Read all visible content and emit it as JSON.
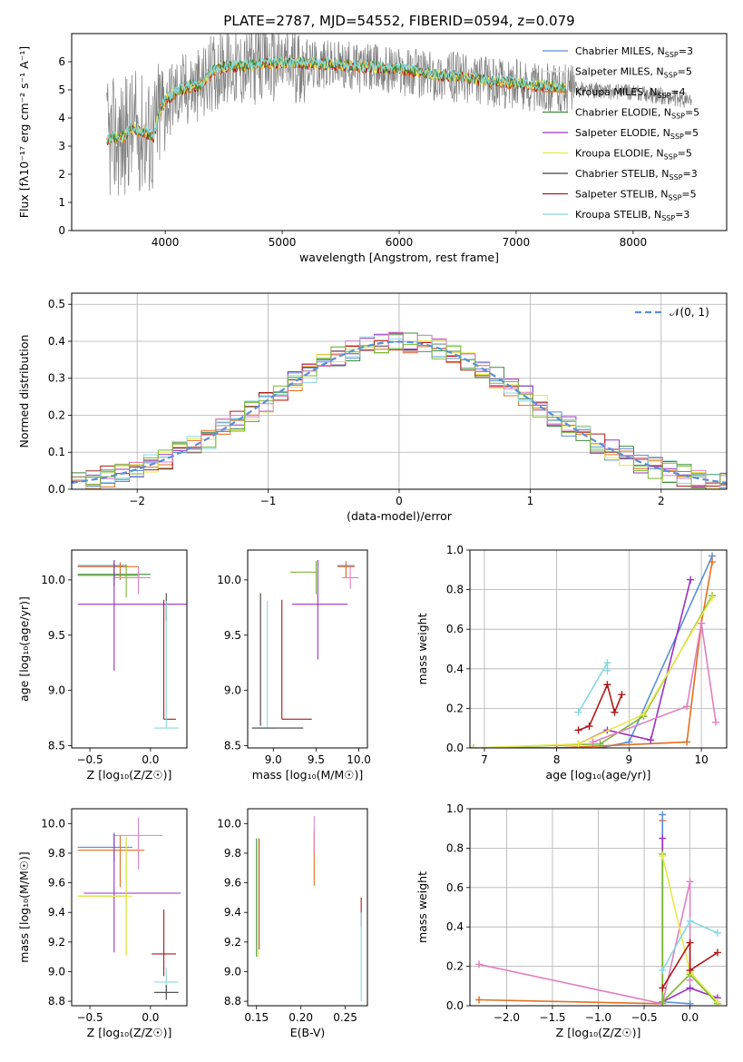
{
  "figure": {
    "title": "PLATE=2787, MJD=54552, FIBERID=0594, z=0.079"
  },
  "colors": {
    "chabrier_miles": "#5b8fd6",
    "salpeter_miles": "#e0e0e0",
    "kroupa_miles": "#e07020",
    "chabrier_elodie": "#3c8a3c",
    "salpeter_elodie": "#9b30c0",
    "kroupa_elodie": "#e8e84a",
    "chabrier_stelib": "#404040",
    "salpeter_stelib": "#b01818",
    "kroupa_stelib": "#88d8e0",
    "data": "#808080",
    "pink": "#e080c0",
    "green": "#7ab830"
  },
  "chart_data": [
    {
      "id": "spectrum",
      "type": "line",
      "title": "PLATE=2787, MJD=54552, FIBERID=0594, z=0.079",
      "xlabel": "wavelength [Angstrom, rest frame]",
      "ylabel": "Flux [fλ10⁻¹⁷ erg cm⁻² s⁻¹ A⁻¹]",
      "xlim": [
        3200,
        8800
      ],
      "ylim": [
        0,
        7
      ],
      "xticks": [
        4000,
        5000,
        6000,
        7000,
        8000
      ],
      "yticks": [
        0,
        1,
        2,
        3,
        4,
        5,
        6
      ],
      "grid": false,
      "legend_position": "right",
      "legend": [
        {
          "label": "Chabrier MILES, N",
          "sub": "SSP",
          "suffix": "=3",
          "color_key": "chabrier_miles"
        },
        {
          "label": "Salpeter MILES, N",
          "sub": "SSP",
          "suffix": "=5",
          "color_key": "salpeter_miles"
        },
        {
          "label": "Kroupa MILES, N",
          "sub": "SSP",
          "suffix": "=4",
          "color_key": "kroupa_miles"
        },
        {
          "label": "Chabrier ELODIE, N",
          "sub": "SSP",
          "suffix": "=5",
          "color_key": "chabrier_elodie"
        },
        {
          "label": "Salpeter ELODIE, N",
          "sub": "SSP",
          "suffix": "=5",
          "color_key": "salpeter_elodie"
        },
        {
          "label": "Kroupa ELODIE, N",
          "sub": "SSP",
          "suffix": "=5",
          "color_key": "kroupa_elodie"
        },
        {
          "label": "Chabrier STELIB, N",
          "sub": "SSP",
          "suffix": "=3",
          "color_key": "chabrier_stelib"
        },
        {
          "label": "Salpeter STELIB, N",
          "sub": "SSP",
          "suffix": "=5",
          "color_key": "salpeter_stelib"
        },
        {
          "label": "Kroupa STELIB, N",
          "sub": "SSP",
          "suffix": "=3",
          "color_key": "kroupa_stelib"
        }
      ],
      "continuum": {
        "x": [
          3500,
          3650,
          3700,
          3800,
          3900,
          3950,
          4000,
          4100,
          4200,
          4300,
          4400,
          4500,
          4700,
          4800,
          5000,
          5200,
          5500,
          5800,
          6000,
          6300,
          6500,
          6700,
          7000,
          7200,
          7400,
          8000,
          8300,
          8500
        ],
        "y": [
          3.2,
          3.3,
          3.6,
          3.5,
          3.3,
          4.2,
          4.6,
          4.9,
          5.1,
          5.1,
          5.6,
          5.8,
          5.8,
          5.9,
          5.95,
          5.9,
          5.85,
          5.75,
          5.7,
          5.5,
          5.45,
          5.3,
          5.2,
          5.1,
          5.05,
          4.9,
          4.75,
          4.6
        ]
      }
    },
    {
      "id": "residuals",
      "type": "line",
      "xlabel": "(data-model)/error",
      "ylabel": "Normed distribution",
      "xlim": [
        -2.5,
        2.5
      ],
      "ylim": [
        0,
        0.53
      ],
      "xticks": [
        -2,
        -1,
        0,
        1,
        2
      ],
      "yticks": [
        0.0,
        0.1,
        0.2,
        0.3,
        0.4,
        0.5
      ],
      "grid": true,
      "legend_position": "top-right",
      "legend": [
        {
          "label": "𝒩(0, 1)",
          "color_key": "chabrier_miles"
        }
      ],
      "gaussian": {
        "mean": 0,
        "sigma": 1
      }
    },
    {
      "id": "age_vs_z",
      "type": "scatter",
      "xlabel": "Z [log₁₀(Z/Z☉)]",
      "ylabel": "age  [log₁₀(age/yr)]",
      "xlim": [
        -0.65,
        0.3
      ],
      "ylim": [
        8.48,
        10.27
      ],
      "xticks": [
        -0.5,
        0.0
      ],
      "yticks": [
        8.5,
        9.0,
        9.5,
        10.0
      ],
      "grid": false,
      "errorbars": [
        {
          "color_key": "chabrier_miles",
          "x": -0.3,
          "xerr": [
            0.3,
            0.1
          ],
          "y": 10.13,
          "yerr": [
            0.13,
            0.04
          ]
        },
        {
          "color_key": "kroupa_miles",
          "x": -0.25,
          "xerr": [
            0.35,
            0.15
          ],
          "y": 10.12,
          "yerr": [
            0.12,
            0.04
          ]
        },
        {
          "color_key": "chabrier_elodie",
          "x": -0.3,
          "xerr": [
            0.3,
            0.3
          ],
          "y": 10.05,
          "yerr": [
            0.1,
            0.1
          ]
        },
        {
          "color_key": "green",
          "x": -0.2,
          "xerr": [
            0.4,
            0.1
          ],
          "y": 10.04,
          "yerr": [
            0.2,
            0.1
          ]
        },
        {
          "color_key": "salpeter_elodie",
          "x": -0.3,
          "xerr": [
            0.3,
            0.6
          ],
          "y": 9.78,
          "yerr": [
            0.6,
            0.4
          ]
        },
        {
          "color_key": "pink",
          "x": -0.1,
          "xerr": [
            0.2,
            0.1
          ],
          "y": 10.02,
          "yerr": [
            0.15,
            0.1
          ]
        },
        {
          "color_key": "chabrier_stelib",
          "x": 0.13,
          "xerr": [
            0.0,
            0.0
          ],
          "y": 9.88,
          "yerr": [
            0.25,
            0.0
          ]
        },
        {
          "color_key": "salpeter_stelib",
          "x": 0.11,
          "xerr": [
            0.0,
            0.1
          ],
          "y": 8.74,
          "yerr": [
            0.0,
            1.08
          ]
        },
        {
          "color_key": "kroupa_stelib",
          "x": 0.13,
          "xerr": [
            0.1,
            0.1
          ],
          "y": 8.66,
          "yerr": [
            0.0,
            1.15
          ]
        }
      ]
    },
    {
      "id": "age_vs_mass",
      "type": "scatter",
      "xlabel": "mass [log₁₀(M/M☉)]",
      "ylabel": "",
      "xlim": [
        8.7,
        10.1
      ],
      "ylim": [
        8.48,
        10.27
      ],
      "xticks": [
        9.0,
        9.5,
        10.0
      ],
      "yticks": [
        8.5,
        9.0,
        9.5,
        10.0
      ],
      "grid": false,
      "errorbars": [
        {
          "color_key": "chabrier_miles",
          "x": 9.85,
          "xerr": [
            0.1,
            0.1
          ],
          "y": 10.13,
          "yerr": [
            0.1,
            0.04
          ]
        },
        {
          "color_key": "kroupa_miles",
          "x": 9.85,
          "xerr": [
            0.1,
            0.1
          ],
          "y": 10.12,
          "yerr": [
            0.1,
            0.04
          ]
        },
        {
          "color_key": "green",
          "x": 9.5,
          "xerr": [
            0.3,
            0.0
          ],
          "y": 10.07,
          "yerr": [
            0.2,
            0.1
          ]
        },
        {
          "color_key": "salpeter_elodie",
          "x": 9.52,
          "xerr": [
            0.3,
            0.35
          ],
          "y": 9.78,
          "yerr": [
            0.5,
            0.4
          ]
        },
        {
          "color_key": "pink",
          "x": 9.9,
          "xerr": [
            0.1,
            0.1
          ],
          "y": 10.02,
          "yerr": [
            0.1,
            0.1
          ]
        },
        {
          "color_key": "chabrier_stelib",
          "x": 8.85,
          "xerr": [
            0.0,
            0.0
          ],
          "y": 9.88,
          "yerr": [
            1.2,
            0.0
          ]
        },
        {
          "color_key": "salpeter_stelib",
          "x": 9.1,
          "xerr": [
            0.0,
            0.35
          ],
          "y": 8.74,
          "yerr": [
            0.0,
            1.08
          ]
        },
        {
          "color_key": "kroupa_stelib",
          "x": 8.93,
          "xerr": [
            0.1,
            0.1
          ],
          "y": 8.66,
          "yerr": [
            0.0,
            1.15
          ]
        },
        {
          "color_key": "chabrier_stelib",
          "x": 9.05,
          "xerr": [
            0.3,
            0.3
          ],
          "y": 8.66,
          "yerr": [
            0.0,
            0.0
          ]
        }
      ]
    },
    {
      "id": "mass_weight_vs_age",
      "type": "line",
      "xlabel": "age  [log₁₀(age/yr)]",
      "ylabel": "mass weight",
      "xlim": [
        6.8,
        10.35
      ],
      "ylim": [
        0,
        1.0
      ],
      "xticks": [
        7,
        8,
        9,
        10
      ],
      "yticks": [
        0.0,
        0.2,
        0.4,
        0.6,
        0.8,
        1.0
      ],
      "grid": true,
      "series": [
        {
          "color_key": "chabrier_miles",
          "x": [
            6.85,
            8.6,
            9.0,
            10.15
          ],
          "y": [
            0.0,
            0.0,
            0.03,
            0.97
          ]
        },
        {
          "color_key": "kroupa_miles",
          "x": [
            6.85,
            8.0,
            9.8,
            10.0,
            10.15
          ],
          "y": [
            0.0,
            0.0,
            0.03,
            0.63,
            0.94
          ]
        },
        {
          "color_key": "salpeter_elodie",
          "x": [
            8.3,
            8.7,
            9.3,
            9.85
          ],
          "y": [
            0.02,
            0.09,
            0.04,
            0.85
          ]
        },
        {
          "color_key": "green",
          "x": [
            6.85,
            8.6,
            9.2,
            10.15
          ],
          "y": [
            0.0,
            0.02,
            0.16,
            0.77
          ]
        },
        {
          "color_key": "kroupa_elodie",
          "x": [
            6.85,
            8.3,
            9.2,
            10.15
          ],
          "y": [
            0.0,
            0.02,
            0.17,
            0.76
          ]
        },
        {
          "color_key": "pink",
          "x": [
            8.5,
            9.8,
            10.0,
            10.2
          ],
          "y": [
            0.03,
            0.21,
            0.63,
            0.13
          ]
        },
        {
          "color_key": "salpeter_stelib",
          "x": [
            8.3,
            8.45,
            8.7,
            8.8,
            8.9
          ],
          "y": [
            0.09,
            0.11,
            0.32,
            0.18,
            0.27
          ]
        },
        {
          "color_key": "kroupa_stelib",
          "x": [
            8.3,
            8.7,
            8.7
          ],
          "y": [
            0.18,
            0.43,
            0.39
          ]
        }
      ]
    },
    {
      "id": "mass_vs_z",
      "type": "scatter",
      "xlabel": "Z [log₁₀(Z/Z☉)]",
      "ylabel": "mass [log₁₀(M/M☉)]",
      "xlim": [
        -0.65,
        0.3
      ],
      "ylim": [
        8.77,
        10.1
      ],
      "xticks": [
        -0.5,
        0.0
      ],
      "yticks": [
        8.8,
        9.0,
        9.2,
        9.4,
        9.6,
        9.8,
        10.0
      ],
      "grid": false,
      "errorbars": [
        {
          "color_key": "chabrier_miles",
          "x": -0.3,
          "xerr": [
            0.3,
            0.15
          ],
          "y": 9.84,
          "yerr": [
            0.1,
            0.1
          ]
        },
        {
          "color_key": "kroupa_miles",
          "x": -0.25,
          "xerr": [
            0.35,
            0.2
          ],
          "y": 9.82,
          "yerr": [
            0.25,
            0.1
          ]
        },
        {
          "color_key": "pink",
          "x": -0.1,
          "xerr": [
            0.2,
            0.2
          ],
          "y": 9.92,
          "yerr": [
            0.23,
            0.12
          ]
        },
        {
          "color_key": "salpeter_elodie",
          "x": -0.3,
          "xerr": [
            0.25,
            0.55
          ],
          "y": 9.53,
          "yerr": [
            0.4,
            0.4
          ]
        },
        {
          "color_key": "green",
          "x": -0.2,
          "xerr": [
            0.4,
            0.0
          ],
          "y": 9.51,
          "yerr": [
            0.4,
            0.4
          ]
        },
        {
          "color_key": "kroupa_elodie",
          "x": -0.2,
          "xerr": [
            0.4,
            0.05
          ],
          "y": 9.51,
          "yerr": [
            0.4,
            0.4
          ]
        },
        {
          "color_key": "salpeter_stelib",
          "x": 0.11,
          "xerr": [
            0.1,
            0.1
          ],
          "y": 9.12,
          "yerr": [
            0.15,
            0.3
          ]
        },
        {
          "color_key": "kroupa_stelib",
          "x": 0.13,
          "xerr": [
            0.1,
            0.1
          ],
          "y": 8.93,
          "yerr": [
            0.1,
            0.1
          ]
        },
        {
          "color_key": "chabrier_stelib",
          "x": 0.13,
          "xerr": [
            0.1,
            0.1
          ],
          "y": 8.86,
          "yerr": [
            0.05,
            0.05
          ]
        }
      ]
    },
    {
      "id": "mass_vs_ebv",
      "type": "scatter",
      "xlabel": "E(B-V)",
      "ylabel": "",
      "xlim": [
        0.14,
        0.275
      ],
      "ylim": [
        8.77,
        10.1
      ],
      "xticks": [
        0.15,
        0.2,
        0.25
      ],
      "yticks": [
        8.8,
        9.0,
        9.2,
        9.4,
        9.6,
        9.8,
        10.0
      ],
      "grid": false,
      "errorbars": [
        {
          "color_key": "chabrier_elodie",
          "x": 0.15,
          "y": 9.5,
          "yerr": [
            0.4,
            0.4
          ]
        },
        {
          "color_key": "salpeter_elodie",
          "x": 0.153,
          "y": 9.5,
          "yerr": [
            0.35,
            0.4
          ]
        },
        {
          "color_key": "kroupa_elodie",
          "x": 0.152,
          "y": 9.5,
          "yerr": [
            0.4,
            0.4
          ]
        },
        {
          "color_key": "kroupa_miles",
          "x": 0.215,
          "y": 9.75,
          "yerr": [
            0.17,
            0.2
          ]
        },
        {
          "color_key": "pink",
          "x": 0.215,
          "y": 9.9,
          "yerr": [
            0.1,
            0.15
          ]
        },
        {
          "color_key": "salpeter_stelib",
          "x": 0.268,
          "y": 9.4,
          "yerr": [
            0.1,
            0.1
          ]
        },
        {
          "color_key": "kroupa_stelib",
          "x": 0.268,
          "y": 9.1,
          "yerr": [
            0.3,
            0.3
          ]
        }
      ]
    },
    {
      "id": "mass_weight_vs_z",
      "type": "line",
      "xlabel": "Z [log₁₀(Z/Z☉)]",
      "ylabel": "mass weight",
      "xlim": [
        -2.4,
        0.4
      ],
      "ylim": [
        0,
        1.0
      ],
      "xticks": [
        -2.0,
        -1.5,
        -1.0,
        -0.5,
        0.0
      ],
      "yticks": [
        0.0,
        0.2,
        0.4,
        0.6,
        0.8,
        1.0
      ],
      "grid": true,
      "series": [
        {
          "color_key": "kroupa_miles",
          "x": [
            -2.3,
            -0.3,
            -0.3
          ],
          "y": [
            0.03,
            0.01,
            0.94
          ]
        },
        {
          "color_key": "pink",
          "x": [
            -2.3,
            -0.3,
            0.0,
            0.0
          ],
          "y": [
            0.21,
            0.01,
            0.63,
            0.13
          ]
        },
        {
          "color_key": "chabrier_miles",
          "x": [
            -0.3,
            -0.3,
            0.0
          ],
          "y": [
            0.97,
            0.02,
            0.01
          ]
        },
        {
          "color_key": "salpeter_elodie",
          "x": [
            -0.3,
            -0.3,
            0.0,
            0.3
          ],
          "y": [
            0.85,
            0.02,
            0.09,
            0.04
          ]
        },
        {
          "color_key": "green",
          "x": [
            -0.3,
            -0.3,
            0.0,
            0.3
          ],
          "y": [
            0.77,
            0.02,
            0.16,
            0.01
          ]
        },
        {
          "color_key": "kroupa_elodie",
          "x": [
            -0.3,
            0.0,
            0.3
          ],
          "y": [
            0.76,
            0.17,
            0.02
          ]
        },
        {
          "color_key": "salpeter_stelib",
          "x": [
            -0.3,
            0.0,
            0.0,
            0.3
          ],
          "y": [
            0.09,
            0.32,
            0.18,
            0.27
          ]
        },
        {
          "color_key": "kroupa_stelib",
          "x": [
            -0.3,
            0.0,
            0.3
          ],
          "y": [
            0.18,
            0.43,
            0.37
          ]
        }
      ]
    }
  ]
}
